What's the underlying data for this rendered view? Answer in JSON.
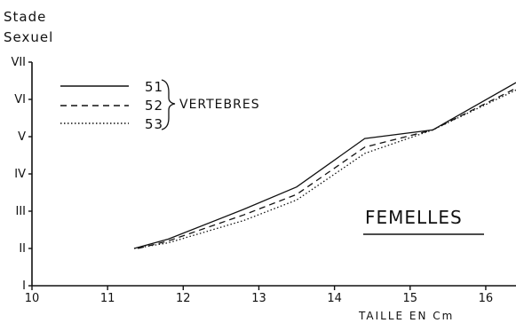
{
  "chart_data": {
    "type": "line",
    "ylabel_lines": [
      "Stade",
      "Sexuel"
    ],
    "xlabel": "TAILLE EN Cm",
    "panel_label": "FEMELLES",
    "legend_group": "VERTEBRES",
    "xlim": [
      10,
      16.4
    ],
    "ylim": [
      1,
      7
    ],
    "x_ticks": [
      {
        "value": 10,
        "label": "10"
      },
      {
        "value": 11,
        "label": "11"
      },
      {
        "value": 12,
        "label": "12"
      },
      {
        "value": 13,
        "label": "13"
      },
      {
        "value": 14,
        "label": "14"
      },
      {
        "value": 15,
        "label": "15"
      },
      {
        "value": 16,
        "label": "16"
      }
    ],
    "y_ticks": [
      {
        "value": 1,
        "label": "I"
      },
      {
        "value": 2,
        "label": "II"
      },
      {
        "value": 3,
        "label": "III"
      },
      {
        "value": 4,
        "label": "IV"
      },
      {
        "value": 5,
        "label": "V"
      },
      {
        "value": 6,
        "label": "VI"
      },
      {
        "value": 7,
        "label": "VII"
      }
    ],
    "series": [
      {
        "name": "51",
        "style": "solid",
        "points": [
          [
            11.35,
            2.0
          ],
          [
            11.8,
            2.25
          ],
          [
            12.8,
            3.05
          ],
          [
            13.5,
            3.65
          ],
          [
            14.4,
            4.95
          ],
          [
            15.3,
            5.18
          ],
          [
            16.4,
            6.45
          ]
        ]
      },
      {
        "name": "52",
        "style": "dashed",
        "points": [
          [
            11.4,
            2.0
          ],
          [
            11.8,
            2.2
          ],
          [
            12.8,
            2.9
          ],
          [
            13.5,
            3.45
          ],
          [
            14.4,
            4.72
          ],
          [
            15.3,
            5.18
          ],
          [
            16.4,
            6.3
          ]
        ]
      },
      {
        "name": "53",
        "style": "dotted",
        "points": [
          [
            11.35,
            2.0
          ],
          [
            11.8,
            2.15
          ],
          [
            12.8,
            2.75
          ],
          [
            13.5,
            3.3
          ],
          [
            14.4,
            4.55
          ],
          [
            15.3,
            5.18
          ],
          [
            16.4,
            6.25
          ]
        ]
      }
    ]
  }
}
